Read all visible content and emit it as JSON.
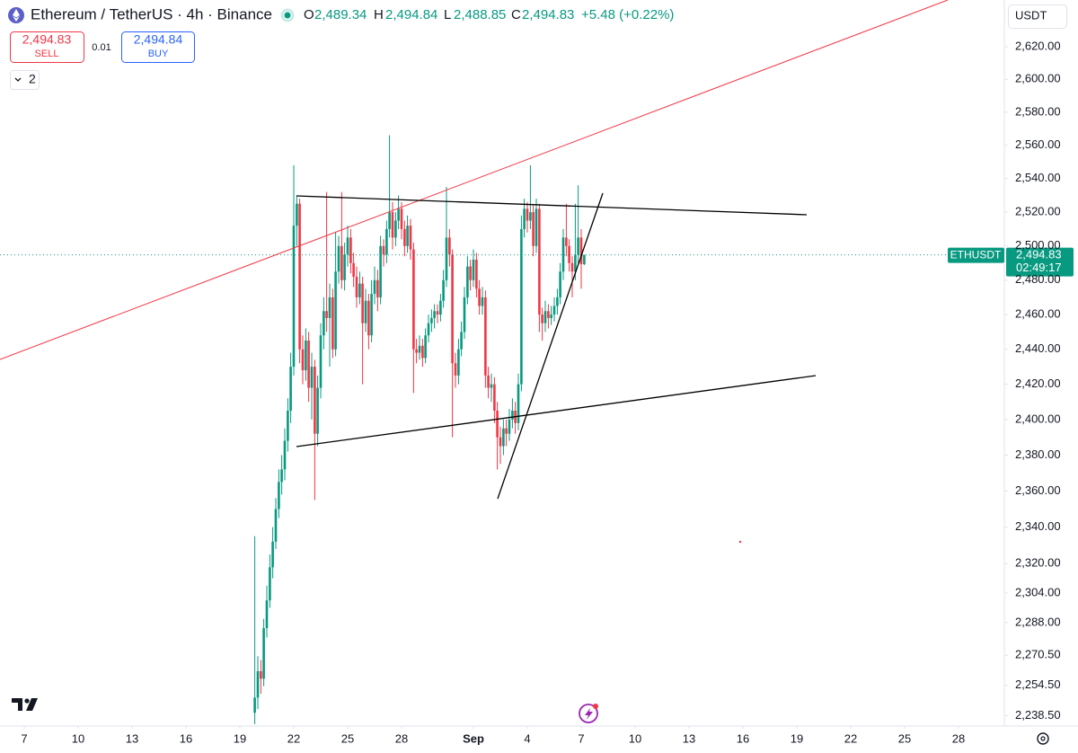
{
  "header": {
    "symbol": "Ethereum / TetherUS · 4h · Binance",
    "open_label": "O",
    "open": "2,489.34",
    "high_label": "H",
    "high": "2,494.84",
    "low_label": "L",
    "low": "2,488.85",
    "close_label": "C",
    "close": "2,494.83",
    "change": "+5.48 (+0.22%)"
  },
  "trade": {
    "sell_price": "2,494.83",
    "sell": "SELL",
    "spread": "0.01",
    "buy_price": "2,494.84",
    "buy": "BUY"
  },
  "indicators_count": "2",
  "currency": "USDT",
  "price_tag": {
    "symbol": "ETHUSDT",
    "price": "2,494.83",
    "countdown": "02:49:17"
  },
  "chart_data": {
    "type": "candlestick",
    "log_scale": true,
    "grid": false,
    "up_color": "#089981",
    "down_color": "#f23645",
    "xlim": [
      5.65,
      61.55
    ],
    "xticks": [
      7,
      10,
      13,
      16,
      19,
      22,
      25,
      28,
      {
        "value": 32,
        "label": "Sep"
      },
      {
        "value": 35,
        "label": "4"
      },
      {
        "value": 38,
        "label": "7"
      },
      {
        "value": 41,
        "label": "10"
      },
      {
        "value": 44,
        "label": "13"
      },
      {
        "value": 47,
        "label": "16"
      },
      {
        "value": 50,
        "label": "19"
      },
      {
        "value": 53,
        "label": "22"
      },
      {
        "value": 56,
        "label": "25"
      },
      {
        "value": 59,
        "label": "28"
      }
    ],
    "ylim": [
      2233,
      2649
    ],
    "yticks": [
      {
        "value": 2620,
        "label": "2,620.00"
      },
      {
        "value": 2600,
        "label": "2,600.00"
      },
      {
        "value": 2580,
        "label": "2,580.00"
      },
      {
        "value": 2560,
        "label": "2,560.00"
      },
      {
        "value": 2540,
        "label": "2,540.00"
      },
      {
        "value": 2520,
        "label": "2,520.00"
      },
      {
        "value": 2500,
        "label": "2,500.00"
      },
      {
        "value": 2480,
        "label": "2,480.00"
      },
      {
        "value": 2460,
        "label": "2,460.00"
      },
      {
        "value": 2440,
        "label": "2,440.00"
      },
      {
        "value": 2420,
        "label": "2,420.00"
      },
      {
        "value": 2400,
        "label": "2,400.00"
      },
      {
        "value": 2380,
        "label": "2,380.00"
      },
      {
        "value": 2360,
        "label": "2,360.00"
      },
      {
        "value": 2340,
        "label": "2,340.00"
      },
      {
        "value": 2320,
        "label": "2,320.00"
      },
      {
        "value": 2304,
        "label": "2,304.00"
      },
      {
        "value": 2288,
        "label": "2,288.00"
      },
      {
        "value": 2270.5,
        "label": "2,270.50"
      },
      {
        "value": 2254.5,
        "label": "2,254.50"
      },
      {
        "value": 2238.5,
        "label": "2,238.50"
      }
    ],
    "x": [
      19.83,
      20,
      20.17,
      20.33,
      20.5,
      20.67,
      20.83,
      21,
      21.17,
      21.33,
      21.5,
      21.67,
      21.83,
      22,
      22.17,
      22.33,
      22.5,
      22.67,
      22.83,
      23,
      23.17,
      23.33,
      23.5,
      23.67,
      23.83,
      24,
      24.17,
      24.33,
      24.5,
      24.67,
      24.83,
      25,
      25.17,
      25.33,
      25.5,
      25.67,
      25.83,
      26,
      26.17,
      26.33,
      26.5,
      26.67,
      26.83,
      27,
      27.17,
      27.33,
      27.5,
      27.67,
      27.83,
      28,
      28.17,
      28.33,
      28.5,
      28.67,
      28.83,
      29,
      29.17,
      29.33,
      29.5,
      29.67,
      29.83,
      30,
      30.17,
      30.33,
      30.5,
      30.67,
      30.83,
      31,
      31.17,
      31.33,
      31.5,
      31.67,
      31.83,
      32,
      32.17,
      32.33,
      32.5,
      32.67,
      32.83,
      33,
      33.17,
      33.33,
      33.5,
      33.67,
      33.83,
      34,
      34.17,
      34.33,
      34.5,
      34.67,
      34.83,
      35,
      35.17,
      35.33,
      35.5,
      35.67,
      35.83,
      36,
      36.17,
      36.33,
      36.5,
      36.67,
      36.83,
      37,
      37.17,
      37.33,
      37.5,
      37.67,
      37.83,
      38,
      38.17
    ],
    "open": [
      2240,
      2248,
      2262,
      2258,
      2285,
      2300,
      2318,
      2332,
      2350,
      2365,
      2372,
      2388,
      2405,
      2430,
      2512,
      2525,
      2440,
      2428,
      2445,
      2418,
      2430,
      2392,
      2418,
      2448,
      2462,
      2458,
      2470,
      2440,
      2485,
      2500,
      2480,
      2495,
      2505,
      2490,
      2482,
      2470,
      2478,
      2455,
      2468,
      2448,
      2472,
      2480,
      2470,
      2500,
      2495,
      2510,
      2520,
      2505,
      2515,
      2522,
      2510,
      2500,
      2512,
      2498,
      2440,
      2438,
      2442,
      2435,
      2448,
      2455,
      2458,
      2462,
      2460,
      2468,
      2480,
      2505,
      2495,
      2432,
      2425,
      2440,
      2450,
      2470,
      2488,
      2480,
      2492,
      2475,
      2465,
      2470,
      2425,
      2418,
      2420,
      2405,
      2390,
      2385,
      2395,
      2392,
      2400,
      2405,
      2398,
      2420,
      2510,
      2522,
      2515,
      2520,
      2500,
      2522,
      2460,
      2455,
      2462,
      2458,
      2460,
      2465,
      2470,
      2485,
      2505,
      2500,
      2490,
      2485,
      2495,
      2505,
      2489.34
    ],
    "high": [
      2335,
      2270,
      2268,
      2290,
      2308,
      2325,
      2340,
      2356,
      2372,
      2380,
      2395,
      2412,
      2438,
      2548,
      2530,
      2528,
      2448,
      2452,
      2450,
      2438,
      2434,
      2425,
      2455,
      2470,
      2532,
      2478,
      2475,
      2508,
      2506,
      2532,
      2502,
      2512,
      2510,
      2496,
      2488,
      2485,
      2482,
      2475,
      2472,
      2480,
      2488,
      2486,
      2506,
      2504,
      2515,
      2566,
      2526,
      2520,
      2530,
      2526,
      2515,
      2518,
      2516,
      2502,
      2446,
      2448,
      2446,
      2452,
      2460,
      2463,
      2466,
      2466,
      2472,
      2486,
      2535,
      2510,
      2498,
      2438,
      2446,
      2456,
      2476,
      2494,
      2492,
      2498,
      2496,
      2480,
      2476,
      2474,
      2430,
      2426,
      2424,
      2410,
      2396,
      2400,
      2400,
      2406,
      2412,
      2410,
      2426,
      2518,
      2528,
      2526,
      2548,
      2524,
      2528,
      2525,
      2464,
      2468,
      2466,
      2465,
      2470,
      2475,
      2490,
      2510,
      2525,
      2504,
      2494,
      2525,
      2536,
      2510,
      2494.84
    ],
    "low": [
      2234,
      2242,
      2250,
      2254,
      2280,
      2296,
      2312,
      2328,
      2345,
      2358,
      2366,
      2382,
      2398,
      2425,
      2500,
      2432,
      2420,
      2422,
      2410,
      2400,
      2355,
      2385,
      2412,
      2440,
      2450,
      2430,
      2435,
      2436,
      2478,
      2475,
      2474,
      2488,
      2484,
      2476,
      2464,
      2466,
      2420,
      2450,
      2440,
      2444,
      2466,
      2462,
      2466,
      2488,
      2490,
      2505,
      2498,
      2500,
      2510,
      2504,
      2494,
      2496,
      2492,
      2415,
      2432,
      2434,
      2430,
      2432,
      2444,
      2450,
      2452,
      2455,
      2456,
      2464,
      2476,
      2488,
      2390,
      2418,
      2420,
      2436,
      2446,
      2466,
      2474,
      2476,
      2470,
      2460,
      2460,
      2418,
      2412,
      2410,
      2398,
      2372,
      2375,
      2380,
      2385,
      2388,
      2395,
      2392,
      2394,
      2416,
      2505,
      2508,
      2510,
      2494,
      2496,
      2450,
      2445,
      2450,
      2452,
      2454,
      2456,
      2460,
      2466,
      2480,
      2494,
      2485,
      2470,
      2480,
      2490,
      2475,
      2488.85
    ],
    "close": [
      2248,
      2262,
      2258,
      2285,
      2300,
      2318,
      2332,
      2350,
      2365,
      2372,
      2388,
      2405,
      2430,
      2512,
      2525,
      2440,
      2428,
      2445,
      2418,
      2430,
      2392,
      2418,
      2448,
      2462,
      2458,
      2470,
      2440,
      2485,
      2500,
      2480,
      2495,
      2505,
      2490,
      2482,
      2470,
      2478,
      2455,
      2468,
      2448,
      2472,
      2480,
      2470,
      2500,
      2495,
      2510,
      2520,
      2505,
      2515,
      2522,
      2510,
      2500,
      2512,
      2498,
      2440,
      2438,
      2442,
      2435,
      2448,
      2455,
      2458,
      2462,
      2460,
      2468,
      2480,
      2505,
      2495,
      2432,
      2425,
      2440,
      2450,
      2470,
      2488,
      2480,
      2492,
      2475,
      2465,
      2470,
      2425,
      2418,
      2420,
      2405,
      2390,
      2385,
      2395,
      2392,
      2400,
      2405,
      2398,
      2420,
      2510,
      2522,
      2515,
      2520,
      2500,
      2522,
      2460,
      2455,
      2462,
      2458,
      2460,
      2465,
      2470,
      2485,
      2505,
      2500,
      2490,
      2485,
      2495,
      2505,
      2489.34,
      2494.83
    ]
  }
}
